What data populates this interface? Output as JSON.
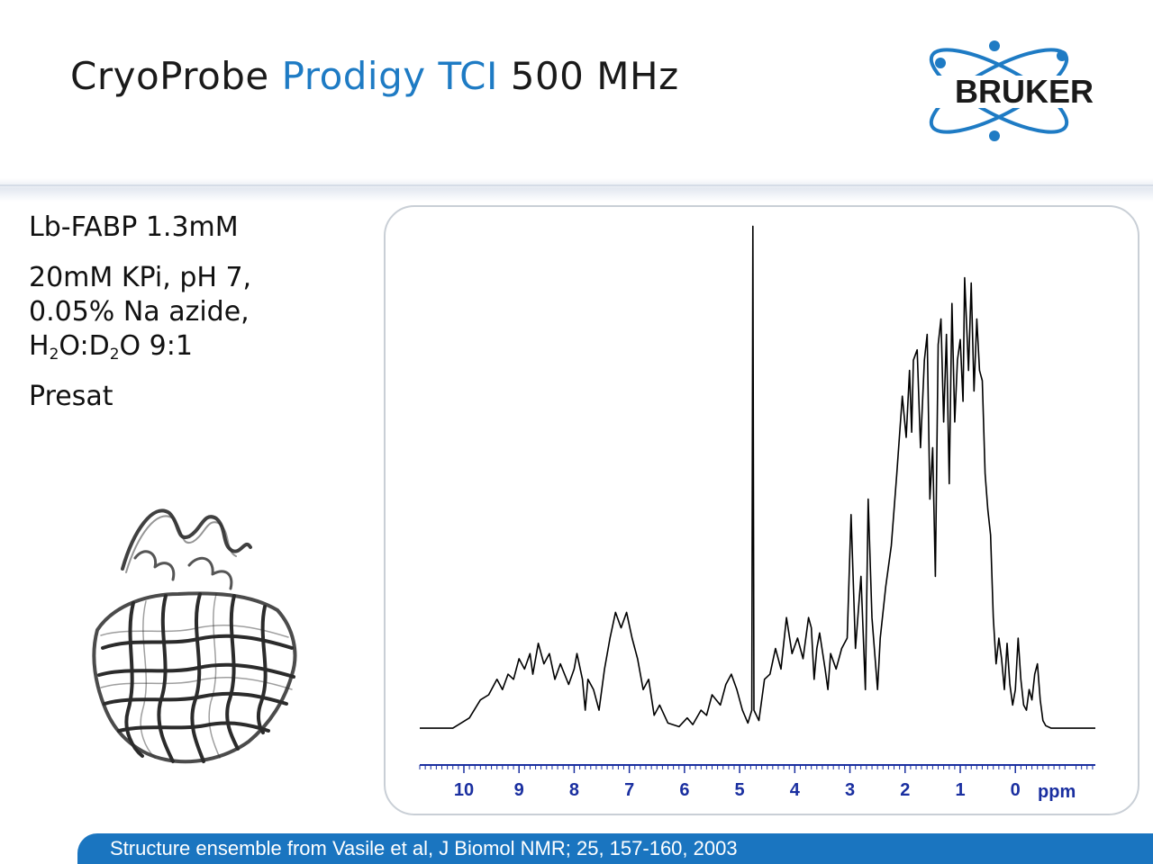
{
  "header": {
    "title_part1": "CryoProbe",
    "title_part2": "Prodigy TCI",
    "title_part3": "500 MHz",
    "accent_color": "#1e7bc4"
  },
  "logo": {
    "text": "BRUKER",
    "color": "#1e7bc4"
  },
  "sample": {
    "line1": "Lb-FABP 1.3mM",
    "line2": "20mM KPi, pH 7,",
    "line3": "0.05% Na azide,",
    "line4_pre": "H",
    "line4_sub1": "2",
    "line4_mid": "O:D",
    "line4_sub2": "2",
    "line4_post": "O 9:1",
    "line5": "Presat"
  },
  "protein_image": {
    "icon": "protein-structure-icon"
  },
  "footer": {
    "text": "Structure ensemble from Vasile et al, J Biomol NMR; 25, 157-160, 2003",
    "color": "#1a75c0"
  },
  "chart_data": {
    "type": "line",
    "title": "",
    "xlabel": "ppm",
    "ylabel": "",
    "xlim": [
      10.8,
      -1.45
    ],
    "x_reversed": true,
    "ylim": [
      0,
      100
    ],
    "xticks": [
      "10",
      "9",
      "8",
      "7",
      "6",
      "5",
      "4",
      "3",
      "2",
      "1",
      "0"
    ],
    "x_tick_values": [
      10,
      9,
      8,
      7,
      6,
      5,
      4,
      3,
      2,
      1,
      0
    ],
    "axis_color": "#1a2fa0",
    "line_color": "#000000",
    "series": [
      {
        "values": [
          [
            10.8,
            0.5
          ],
          [
            10.2,
            0.5
          ],
          [
            9.9,
            2.5
          ],
          [
            9.7,
            6
          ],
          [
            9.55,
            7
          ],
          [
            9.4,
            10
          ],
          [
            9.3,
            8
          ],
          [
            9.2,
            11
          ],
          [
            9.1,
            10
          ],
          [
            9.0,
            14
          ],
          [
            8.9,
            12
          ],
          [
            8.8,
            15
          ],
          [
            8.75,
            11
          ],
          [
            8.65,
            17
          ],
          [
            8.55,
            13
          ],
          [
            8.45,
            15
          ],
          [
            8.35,
            10
          ],
          [
            8.25,
            13
          ],
          [
            8.1,
            9
          ],
          [
            8.0,
            12
          ],
          [
            7.95,
            15
          ],
          [
            7.85,
            10
          ],
          [
            7.8,
            4
          ],
          [
            7.75,
            10
          ],
          [
            7.65,
            8
          ],
          [
            7.55,
            4
          ],
          [
            7.45,
            12
          ],
          [
            7.35,
            18
          ],
          [
            7.25,
            23
          ],
          [
            7.15,
            20
          ],
          [
            7.05,
            23
          ],
          [
            6.95,
            18
          ],
          [
            6.85,
            14
          ],
          [
            6.75,
            8
          ],
          [
            6.65,
            10
          ],
          [
            6.55,
            3
          ],
          [
            6.45,
            5
          ],
          [
            6.3,
            1.5
          ],
          [
            6.1,
            0.8
          ],
          [
            5.95,
            2.5
          ],
          [
            5.85,
            1.2
          ],
          [
            5.7,
            4
          ],
          [
            5.6,
            3
          ],
          [
            5.5,
            7
          ],
          [
            5.35,
            5
          ],
          [
            5.25,
            9
          ],
          [
            5.15,
            11
          ],
          [
            5.05,
            8
          ],
          [
            4.95,
            4
          ],
          [
            4.85,
            1.5
          ],
          [
            4.78,
            4
          ],
          [
            4.76,
            98
          ],
          [
            4.74,
            4
          ],
          [
            4.65,
            2
          ],
          [
            4.55,
            10
          ],
          [
            4.45,
            11
          ],
          [
            4.35,
            16
          ],
          [
            4.25,
            12
          ],
          [
            4.15,
            22
          ],
          [
            4.05,
            15
          ],
          [
            3.95,
            18
          ],
          [
            3.85,
            14
          ],
          [
            3.75,
            22
          ],
          [
            3.7,
            20
          ],
          [
            3.65,
            10
          ],
          [
            3.6,
            16
          ],
          [
            3.55,
            19
          ],
          [
            3.45,
            12
          ],
          [
            3.4,
            8
          ],
          [
            3.35,
            15
          ],
          [
            3.25,
            12
          ],
          [
            3.15,
            16
          ],
          [
            3.05,
            18
          ],
          [
            2.98,
            42
          ],
          [
            2.9,
            16
          ],
          [
            2.8,
            30
          ],
          [
            2.72,
            8
          ],
          [
            2.67,
            45
          ],
          [
            2.6,
            22
          ],
          [
            2.5,
            8
          ],
          [
            2.45,
            18
          ],
          [
            2.35,
            28
          ],
          [
            2.25,
            36
          ],
          [
            2.15,
            50
          ],
          [
            2.05,
            65
          ],
          [
            1.98,
            57
          ],
          [
            1.92,
            70
          ],
          [
            1.88,
            58
          ],
          [
            1.85,
            72
          ],
          [
            1.78,
            74
          ],
          [
            1.72,
            55
          ],
          [
            1.65,
            72
          ],
          [
            1.6,
            77
          ],
          [
            1.55,
            45
          ],
          [
            1.5,
            55
          ],
          [
            1.45,
            30
          ],
          [
            1.4,
            75
          ],
          [
            1.35,
            80
          ],
          [
            1.3,
            60
          ],
          [
            1.25,
            77
          ],
          [
            1.2,
            48
          ],
          [
            1.15,
            83
          ],
          [
            1.1,
            60
          ],
          [
            1.05,
            72
          ],
          [
            1.0,
            76
          ],
          [
            0.95,
            64
          ],
          [
            0.92,
            88
          ],
          [
            0.87,
            75
          ],
          [
            0.85,
            70
          ],
          [
            0.8,
            87
          ],
          [
            0.75,
            66
          ],
          [
            0.7,
            80
          ],
          [
            0.65,
            70
          ],
          [
            0.6,
            68
          ],
          [
            0.55,
            50
          ],
          [
            0.5,
            43
          ],
          [
            0.45,
            38
          ],
          [
            0.4,
            22
          ],
          [
            0.35,
            13
          ],
          [
            0.3,
            18
          ],
          [
            0.25,
            14
          ],
          [
            0.2,
            8
          ],
          [
            0.15,
            17
          ],
          [
            0.1,
            9
          ],
          [
            0.05,
            5
          ],
          [
            0.0,
            8
          ],
          [
            -0.05,
            18
          ],
          [
            -0.1,
            10
          ],
          [
            -0.15,
            5
          ],
          [
            -0.2,
            4
          ],
          [
            -0.25,
            8
          ],
          [
            -0.3,
            6
          ],
          [
            -0.35,
            11
          ],
          [
            -0.4,
            13
          ],
          [
            -0.45,
            6
          ],
          [
            -0.5,
            2
          ],
          [
            -0.55,
            1
          ],
          [
            -0.65,
            0.5
          ],
          [
            -1.45,
            0.5
          ]
        ]
      }
    ]
  }
}
